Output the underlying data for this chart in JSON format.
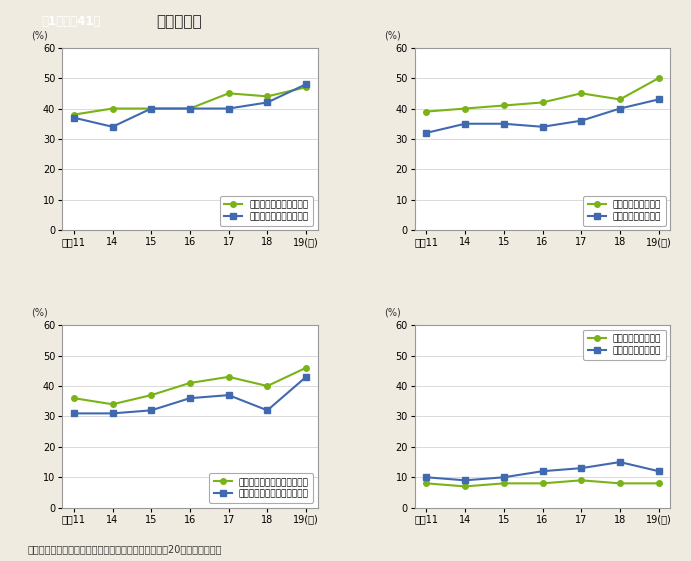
{
  "title_box_text": "第1－特－41図",
  "title_text": "日本の誇り",
  "background_color": "#f0ebe0",
  "plot_bg_color": "#ffffff",
  "x_labels": [
    "平成11",
    "14",
    "15",
    "16",
    "17",
    "18",
    "19(年)"
  ],
  "x_values": [
    0,
    1,
    2,
    3,
    4,
    5,
    6
  ],
  "green_color": "#7ab317",
  "blue_color": "#4169b0",
  "footnote": "（備考）内閣府「社会意識に関する世論調査」（平成20年）より作成。",
  "subplots": [
    {
      "legend_female": "長い歴史と伝統（女性）",
      "legend_male": "長い歴史と伝統（男性）",
      "female_values": [
        38,
        40,
        40,
        40,
        45,
        44,
        47
      ],
      "male_values": [
        37,
        34,
        40,
        40,
        40,
        42,
        48
      ],
      "ylim": [
        0,
        60
      ],
      "yticks": [
        0,
        10,
        20,
        30,
        40,
        50,
        60
      ],
      "legend_loc": "lower right"
    },
    {
      "legend_female": "美しい自然（女性）",
      "legend_male": "美しい自然（男性）",
      "female_values": [
        39,
        40,
        41,
        42,
        45,
        43,
        50
      ],
      "male_values": [
        32,
        35,
        35,
        34,
        36,
        40,
        43
      ],
      "ylim": [
        0,
        60
      ],
      "yticks": [
        0,
        10,
        20,
        30,
        40,
        50,
        60
      ],
      "legend_loc": "lower right"
    },
    {
      "legend_female": "すぐれた文化や芸術（女性）",
      "legend_male": "すぐれた文化や芸術（男性）",
      "female_values": [
        36,
        34,
        37,
        41,
        43,
        40,
        46
      ],
      "male_values": [
        31,
        31,
        32,
        36,
        37,
        32,
        43
      ],
      "ylim": [
        0,
        60
      ],
      "yticks": [
        0,
        10,
        20,
        30,
        40,
        50,
        60
      ],
      "legend_loc": "lower right"
    },
    {
      "legend_female": "経済的繁栄（女性）",
      "legend_male": "経済的繁栄（男性）",
      "female_values": [
        8,
        7,
        8,
        8,
        9,
        8,
        8
      ],
      "male_values": [
        10,
        9,
        10,
        12,
        13,
        15,
        12
      ],
      "ylim": [
        0,
        60
      ],
      "yticks": [
        0,
        10,
        20,
        30,
        40,
        50,
        60
      ],
      "legend_loc": "upper right"
    }
  ]
}
